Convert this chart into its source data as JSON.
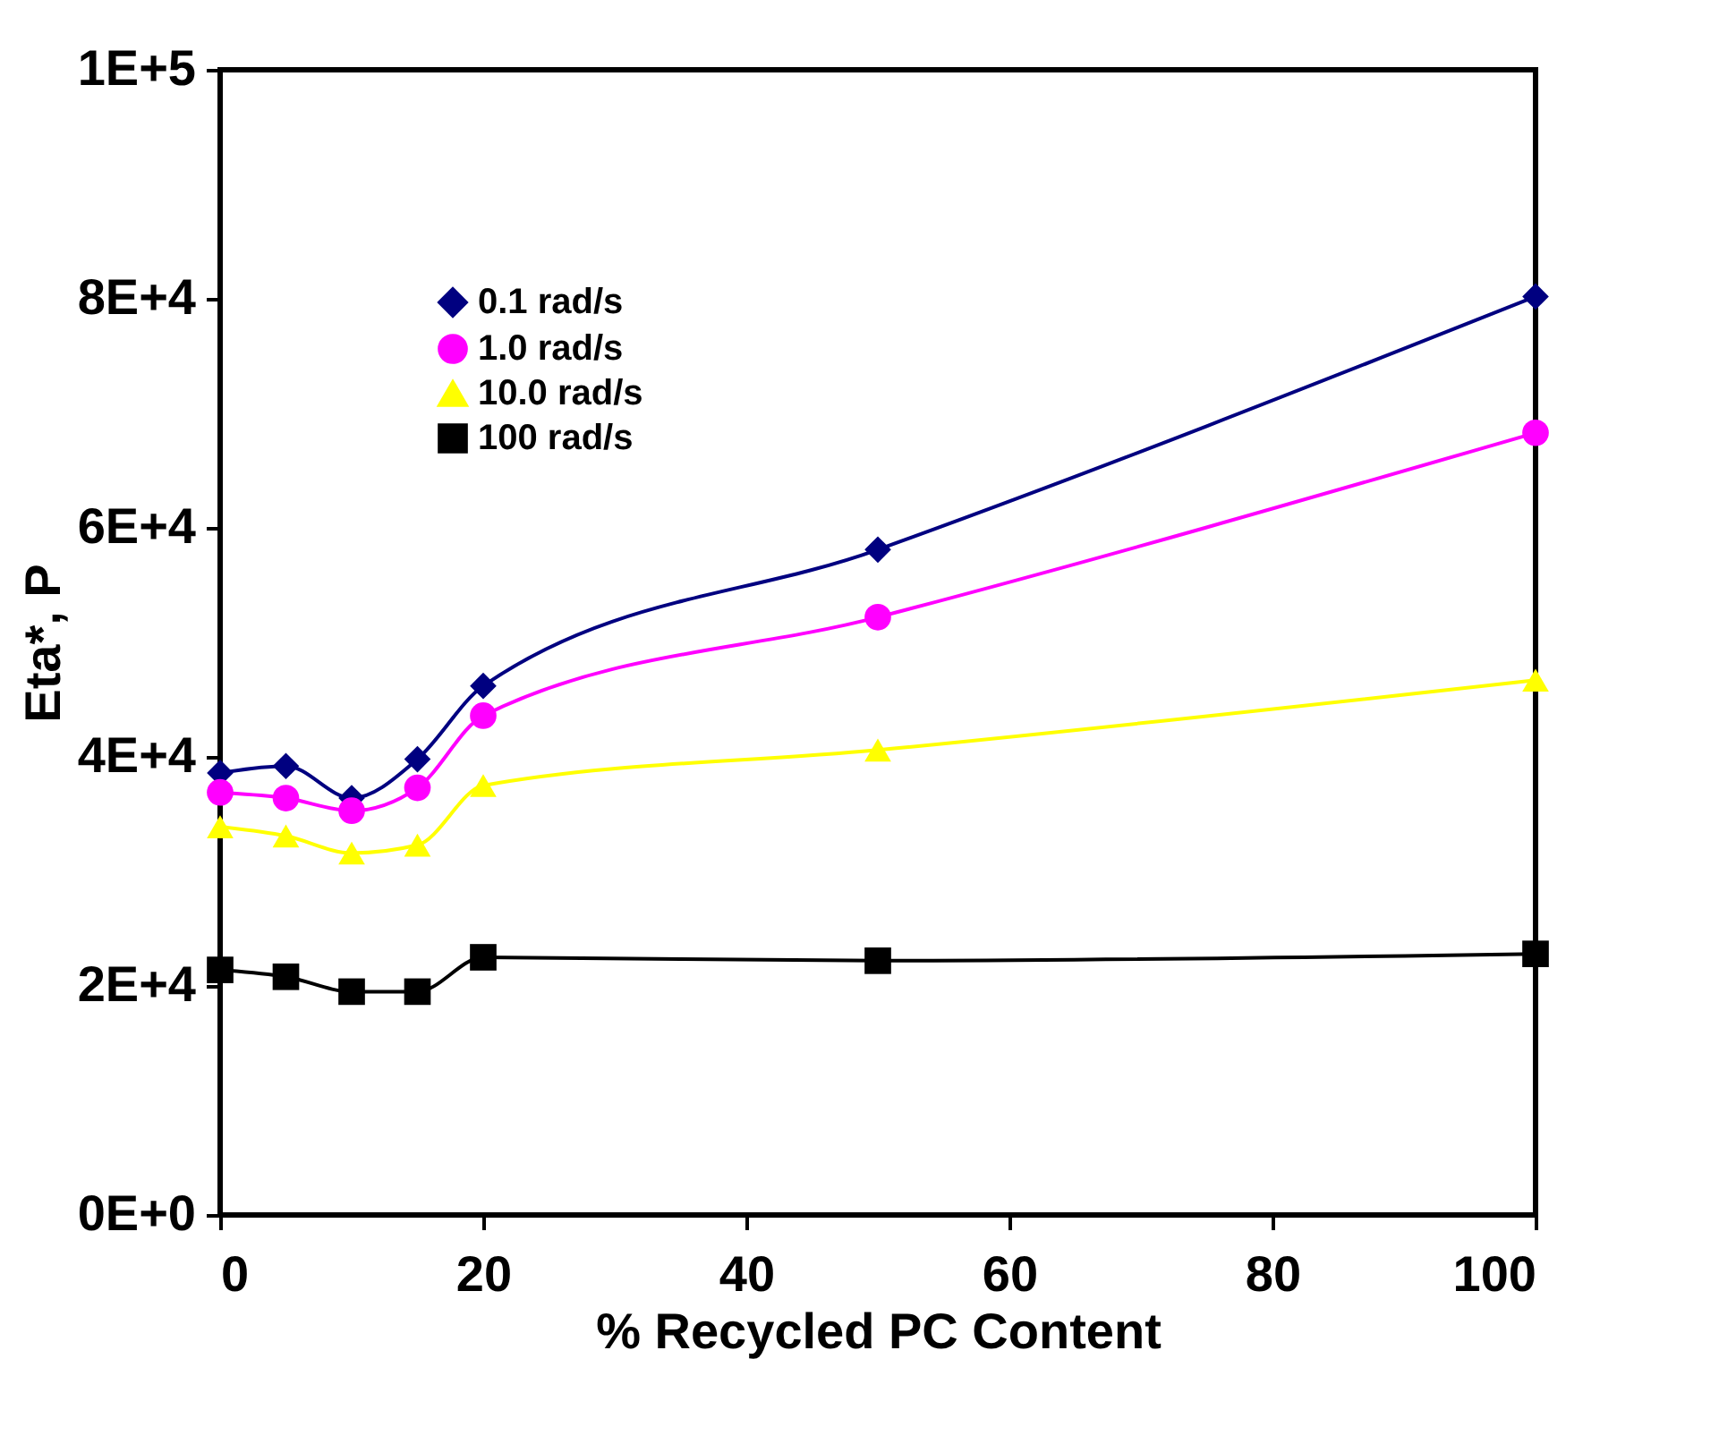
{
  "chart_data": {
    "type": "line",
    "xlabel": "% Recycled PC Content",
    "ylabel": "Eta*, P",
    "x": [
      0,
      5,
      10,
      15,
      20,
      50,
      100
    ],
    "series": [
      {
        "name": "0.1  rad/s",
        "color": "#000080",
        "marker": "diamond",
        "values": [
          38600,
          39200,
          36400,
          39800,
          46200,
          58100,
          80200
        ]
      },
      {
        "name": "1.0  rad/s",
        "color": "#ff00ff",
        "marker": "circle",
        "values": [
          36900,
          36400,
          35300,
          37300,
          43600,
          52200,
          68300
        ]
      },
      {
        "name": "10.0 rad/s",
        "color": "#ffff00",
        "marker": "triangle",
        "values": [
          33900,
          33100,
          31600,
          32300,
          37500,
          40600,
          46700
        ]
      },
      {
        "name": "100 rad/s",
        "color": "#000000",
        "marker": "square",
        "values": [
          21400,
          20800,
          19500,
          19500,
          22500,
          22200,
          22800
        ]
      }
    ],
    "xlim": [
      0,
      100
    ],
    "xticks": [
      0,
      20,
      40,
      60,
      80,
      100
    ],
    "ylim": [
      0,
      100000
    ],
    "yticks": [
      {
        "value": 0,
        "label": "0E+0"
      },
      {
        "value": 20000,
        "label": "2E+4"
      },
      {
        "value": 40000,
        "label": "4E+4"
      },
      {
        "value": 60000,
        "label": "6E+4"
      },
      {
        "value": 80000,
        "label": "8E+4"
      },
      {
        "value": 100000,
        "label": "1E+5"
      }
    ],
    "legend": "top left",
    "grid": false,
    "line_style": "solid"
  }
}
